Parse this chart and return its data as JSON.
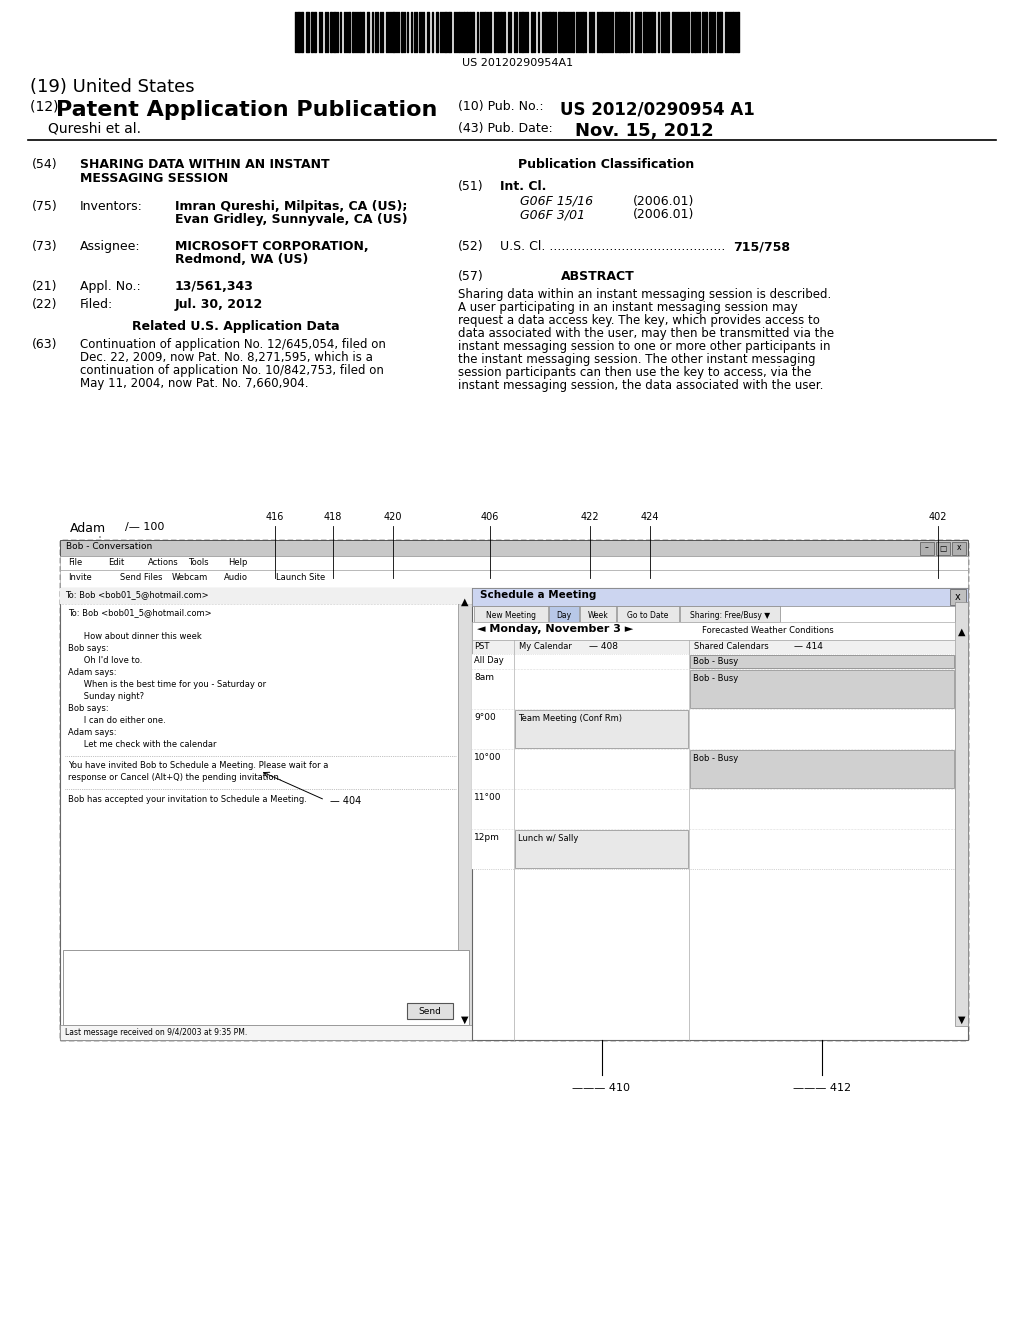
{
  "bg_color": "#ffffff",
  "barcode_text": "US 20120290954A1",
  "title_19": "(19) United States",
  "title_12_prefix": "(12) ",
  "title_12_bold": "Patent Application Publication",
  "pub_no_label": "(10) Pub. No.:",
  "pub_no": "US 2012/0290954 A1",
  "inventor_label": "Qureshi et al.",
  "pub_date_label": "(43) Pub. Date:",
  "pub_date": "Nov. 15, 2012",
  "field54_label": "(54)",
  "field54_title1": "SHARING DATA WITHIN AN INSTANT",
  "field54_title2": "MESSAGING SESSION",
  "pub_class_label": "Publication Classification",
  "field51_label": "(51)",
  "int_cl_label": "Int. Cl.",
  "g06f1516": "G06F 15/16",
  "g06f1516_date": "(2006.01)",
  "g06f301": "G06F 3/01",
  "g06f301_date": "(2006.01)",
  "field52_label": "(52)",
  "us_cl_label": "U.S. Cl. ............................................",
  "us_cl_val": "715/758",
  "field75_label": "(75)",
  "inventors_label": "Inventors:",
  "inventor1": "Imran Qureshi, Milpitas, CA (US);",
  "inventor2": "Evan Gridley, Sunnyvale, CA (US)",
  "field73_label": "(73)",
  "assignee_label": "Assignee:",
  "assignee1": "MICROSOFT CORPORATION,",
  "assignee2": "Redmond, WA (US)",
  "field21_label": "(21)",
  "appl_no_label": "Appl. No.:",
  "appl_no": "13/561,343",
  "field22_label": "(22)",
  "filed_label": "Filed:",
  "filed_date": "Jul. 30, 2012",
  "related_data_label": "Related U.S. Application Data",
  "field63_label": "(63)",
  "continuation_lines": [
    "Continuation of application No. 12/645,054, filed on",
    "Dec. 22, 2009, now Pat. No. 8,271,595, which is a",
    "continuation of application No. 10/842,753, filed on",
    "May 11, 2004, now Pat. No. 7,660,904."
  ],
  "field57_label": "(57)",
  "abstract_label": "ABSTRACT",
  "abstract_lines": [
    "Sharing data within an instant messaging session is described.",
    "A user participating in an instant messaging session may",
    "request a data access key. The key, which provides access to",
    "data associated with the user, may then be transmitted via the",
    "instant messaging session to one or more other participants in",
    "the instant messaging session. The other instant messaging",
    "session participants can then use the key to access, via the",
    "instant messaging session, the data associated with the user."
  ],
  "chat_lines": [
    "To: Bob <bob01_5@hotmail.com>",
    "",
    "      How about dinner this week",
    "Bob says:",
    "      Oh I'd love to.",
    "Adam says:",
    "      When is the best time for you - Saturday or",
    "      Sunday night?",
    "Bob says:",
    "      I can do either one.",
    "Adam says:",
    "      Let me check with the calendar"
  ],
  "inv_lines": [
    "You have invited Bob to Schedule a Meeting. Please wait for a",
    "response or Cancel (Alt+Q) the pending invitation."
  ],
  "accepted_line": "Bob has accepted your invitation to Schedule a Meeting.",
  "status_line": "Last message received on 9/4/2003 at 9:35 PM.",
  "diagram_adam_label": "Adam",
  "diagram_100_label": "100",
  "diagram_402_label": "402",
  "diagram_404_label": "404",
  "diagram_406_label": "406",
  "diagram_408_label": "408",
  "diagram_410_label": "410",
  "diagram_412_label": "412",
  "diagram_414_label": "414",
  "diagram_416_label": "416",
  "diagram_418_label": "418",
  "diagram_420_label": "420",
  "diagram_422_label": "422",
  "diagram_424_label": "424"
}
